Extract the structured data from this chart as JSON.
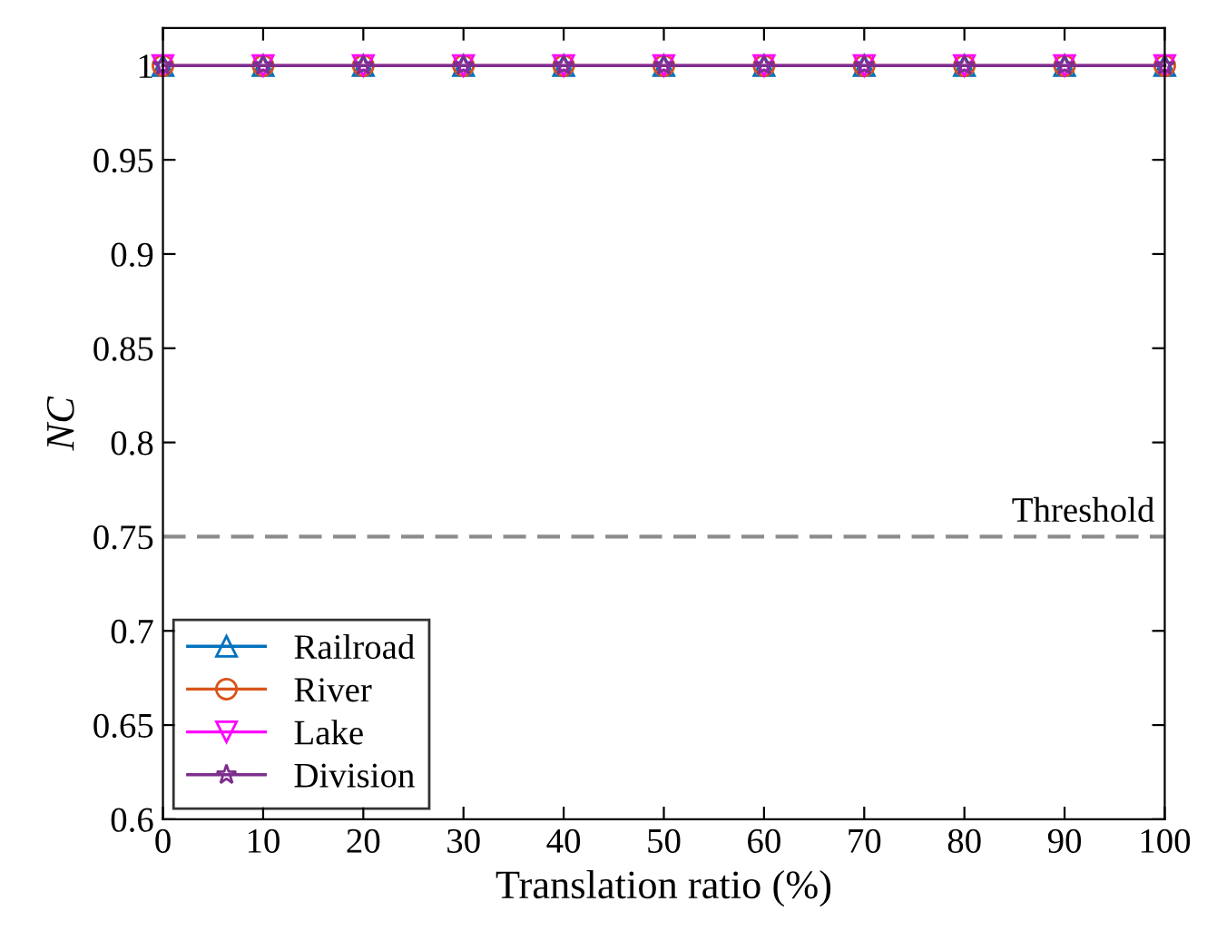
{
  "chart_data": {
    "type": "line",
    "xlabel": "Translation ratio (%)",
    "ylabel": "NC",
    "x": [
      0,
      10,
      20,
      30,
      40,
      50,
      60,
      70,
      80,
      90,
      100
    ],
    "series": [
      {
        "name": "Railroad",
        "color": "#0072bd",
        "marker": "triangle",
        "values": [
          1,
          1,
          1,
          1,
          1,
          1,
          1,
          1,
          1,
          1,
          1
        ]
      },
      {
        "name": "River",
        "color": "#d95319",
        "marker": "circle",
        "values": [
          1,
          1,
          1,
          1,
          1,
          1,
          1,
          1,
          1,
          1,
          1
        ]
      },
      {
        "name": "Lake",
        "color": "#ff00ff",
        "marker": "triangle_down",
        "values": [
          1,
          1,
          1,
          1,
          1,
          1,
          1,
          1,
          1,
          1,
          1
        ]
      },
      {
        "name": "Division",
        "color": "#7e2f8e",
        "marker": "star",
        "values": [
          1,
          1,
          1,
          1,
          1,
          1,
          1,
          1,
          1,
          1,
          1
        ]
      }
    ],
    "xlim": [
      0,
      100
    ],
    "xticks": [
      0,
      10,
      20,
      30,
      40,
      50,
      60,
      70,
      80,
      90,
      100
    ],
    "ylim": [
      0.6,
      1.02
    ],
    "yticks": [
      0.6,
      0.65,
      0.7,
      0.75,
      0.8,
      0.85,
      0.9,
      0.95,
      1
    ],
    "ref_lines": [
      {
        "axis": "y",
        "value": 0.75,
        "label": "Threshold",
        "color": "#8c8c8c",
        "line_style": "dashed"
      }
    ],
    "legend": "bottom left",
    "grid": false,
    "line_style": "solid"
  }
}
